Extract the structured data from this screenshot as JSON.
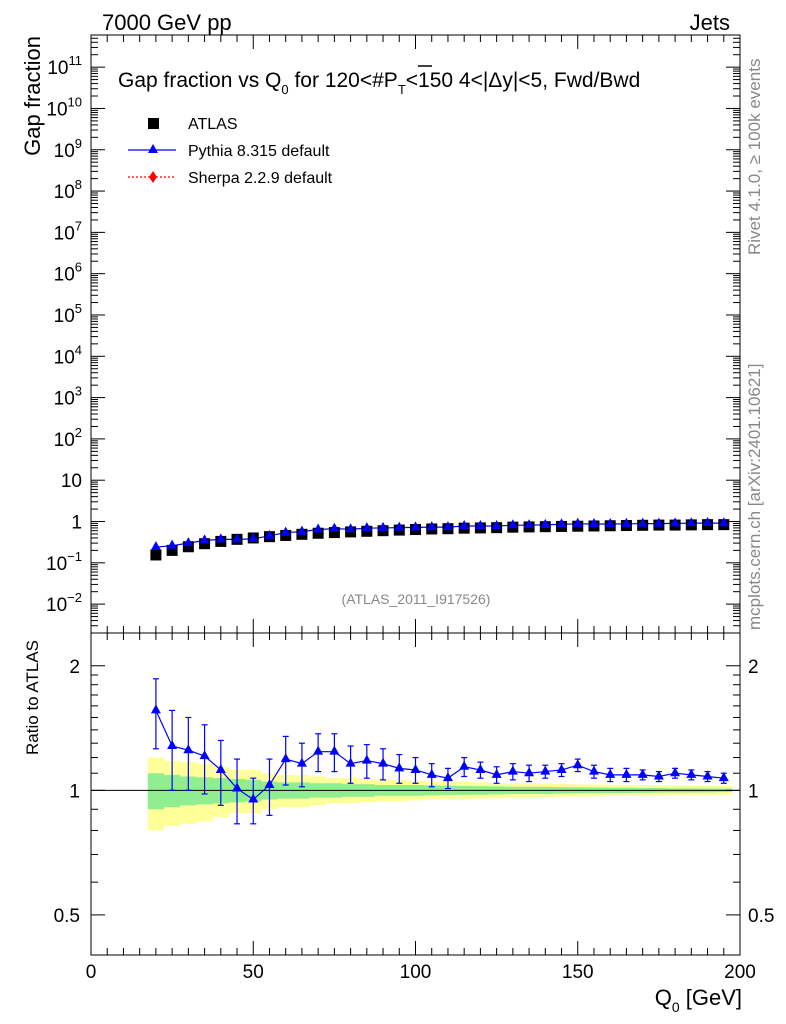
{
  "header": {
    "left": "7000 GeV pp",
    "right": "Jets"
  },
  "side": {
    "rivet": "Rivet 4.1.0, ≥ 100k events",
    "mcplots": "mcplots.cern.ch [arXiv:2401.10621]"
  },
  "colors": {
    "atlas": "#000000",
    "pythia": "#0000ff",
    "sherpa": "#ff0000",
    "band_stat": "#90ee90",
    "band_tot": "#ffff99"
  },
  "chart_data": [
    {
      "type": "scatter",
      "title_parts": {
        "a": "Gap fraction vs Q",
        "a_sub": "0",
        "b": " for 120<#",
        "b_over": "P",
        "b_sub": "T",
        "c": "<150  4<|Δy|<5, Fwd/Bwd"
      },
      "ylabel": "Gap fraction",
      "yscale": "log",
      "ylim": [
        0.002,
        600000000000
      ],
      "xlim": [
        0,
        200
      ],
      "yticks": [
        {
          "v": 0.01,
          "base": "10",
          "exp": "−2"
        },
        {
          "v": 0.1,
          "base": "10",
          "exp": "−1"
        },
        {
          "v": 1,
          "base": "1",
          "exp": ""
        },
        {
          "v": 10,
          "base": "10",
          "exp": ""
        },
        {
          "v": 100,
          "base": "10",
          "exp": "2"
        },
        {
          "v": 1000,
          "base": "10",
          "exp": "3"
        },
        {
          "v": 10000,
          "base": "10",
          "exp": "4"
        },
        {
          "v": 100000,
          "base": "10",
          "exp": "5"
        },
        {
          "v": 1000000,
          "base": "10",
          "exp": "6"
        },
        {
          "v": 10000000,
          "base": "10",
          "exp": "7"
        },
        {
          "v": 100000000,
          "base": "10",
          "exp": "8"
        },
        {
          "v": 1000000000,
          "base": "10",
          "exp": "9"
        },
        {
          "v": 10000000000,
          "base": "10",
          "exp": "10"
        },
        {
          "v": 100000000000,
          "base": "10",
          "exp": "11"
        }
      ],
      "legend": [
        {
          "label": "ATLAS",
          "marker": "square"
        },
        {
          "label": "Pythia 8.315 default",
          "marker": "triangle"
        },
        {
          "label": "Sherpa 2.2.9 default",
          "marker": "diamond"
        }
      ],
      "watermark": "(ATLAS_2011_I917526)",
      "x": [
        20,
        25,
        30,
        35,
        40,
        45,
        50,
        55,
        60,
        65,
        70,
        75,
        80,
        85,
        90,
        95,
        100,
        105,
        110,
        115,
        120,
        125,
        130,
        135,
        140,
        145,
        150,
        155,
        160,
        165,
        170,
        175,
        180,
        185,
        190,
        195
      ],
      "series": [
        {
          "name": "ATLAS",
          "values": [
            0.155,
            0.2,
            0.245,
            0.29,
            0.33,
            0.37,
            0.4,
            0.43,
            0.46,
            0.49,
            0.52,
            0.54,
            0.56,
            0.58,
            0.6,
            0.62,
            0.64,
            0.66,
            0.67,
            0.69,
            0.7,
            0.71,
            0.73,
            0.74,
            0.75,
            0.76,
            0.77,
            0.78,
            0.79,
            0.8,
            0.81,
            0.82,
            0.82,
            0.83,
            0.84,
            0.84
          ]
        },
        {
          "name": "Pythia 8.315 default",
          "values": [
            0.24,
            0.26,
            0.3,
            0.35,
            0.37,
            0.37,
            0.38,
            0.45,
            0.54,
            0.57,
            0.64,
            0.67,
            0.65,
            0.69,
            0.7,
            0.71,
            0.72,
            0.73,
            0.73,
            0.78,
            0.78,
            0.78,
            0.81,
            0.82,
            0.83,
            0.86,
            0.88,
            0.87,
            0.87,
            0.88,
            0.89,
            0.89,
            0.9,
            0.91,
            0.92,
            0.91
          ]
        }
      ]
    },
    {
      "type": "scatter",
      "ylabel": "Ratio to ATLAS",
      "xlabel_main": "Q",
      "xlabel_sub": "0",
      "xlabel_unit": " [GeV]",
      "yscale": "log",
      "ylim": [
        0.4,
        2.4
      ],
      "xlim": [
        0,
        200
      ],
      "yticks": [
        {
          "v": 0.5,
          "label": "0.5"
        },
        {
          "v": 1,
          "label": "1"
        },
        {
          "v": 2,
          "label": "2"
        }
      ],
      "xticks": [
        {
          "v": 0,
          "label": "0"
        },
        {
          "v": 50,
          "label": "50"
        },
        {
          "v": 100,
          "label": "100"
        },
        {
          "v": 150,
          "label": "150"
        },
        {
          "v": 200,
          "label": "200"
        }
      ],
      "x": [
        20,
        25,
        30,
        35,
        40,
        45,
        50,
        55,
        60,
        65,
        70,
        75,
        80,
        85,
        90,
        95,
        100,
        105,
        110,
        115,
        120,
        125,
        130,
        135,
        140,
        145,
        150,
        155,
        160,
        165,
        170,
        175,
        180,
        185,
        190,
        195
      ],
      "pythia_ratio": [
        1.56,
        1.28,
        1.25,
        1.21,
        1.12,
        1.01,
        0.95,
        1.03,
        1.19,
        1.16,
        1.24,
        1.24,
        1.16,
        1.18,
        1.16,
        1.13,
        1.12,
        1.09,
        1.07,
        1.14,
        1.12,
        1.09,
        1.11,
        1.1,
        1.11,
        1.12,
        1.15,
        1.11,
        1.09,
        1.09,
        1.09,
        1.08,
        1.1,
        1.09,
        1.08,
        1.07
      ],
      "pythia_err": [
        0.3,
        0.28,
        0.25,
        0.23,
        0.2,
        0.18,
        0.12,
        0.16,
        0.16,
        0.14,
        0.13,
        0.13,
        0.12,
        0.11,
        0.1,
        0.09,
        0.08,
        0.07,
        0.06,
        0.06,
        0.05,
        0.05,
        0.05,
        0.05,
        0.04,
        0.04,
        0.04,
        0.04,
        0.04,
        0.04,
        0.03,
        0.03,
        0.03,
        0.03,
        0.03,
        0.03
      ],
      "band_stat": [
        0.1,
        0.09,
        0.08,
        0.075,
        0.07,
        0.065,
        0.06,
        0.05,
        0.045,
        0.045,
        0.04,
        0.04,
        0.035,
        0.035,
        0.03,
        0.03,
        0.03,
        0.028,
        0.026,
        0.025,
        0.024,
        0.022,
        0.02,
        0.02,
        0.02,
        0.018,
        0.017,
        0.016,
        0.015,
        0.015,
        0.014,
        0.013,
        0.012,
        0.012,
        0.011,
        0.01
      ],
      "band_tot": [
        0.2,
        0.18,
        0.17,
        0.16,
        0.14,
        0.12,
        0.12,
        0.1,
        0.09,
        0.09,
        0.08,
        0.07,
        0.07,
        0.065,
        0.06,
        0.06,
        0.055,
        0.05,
        0.05,
        0.048,
        0.045,
        0.043,
        0.04,
        0.04,
        0.038,
        0.036,
        0.034,
        0.033,
        0.032,
        0.031,
        0.03,
        0.029,
        0.028,
        0.027,
        0.026,
        0.025
      ]
    }
  ]
}
